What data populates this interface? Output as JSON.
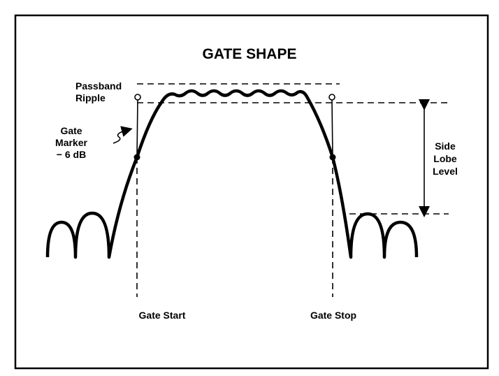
{
  "title": "GATE SHAPE",
  "passband_ripple": [
    "Passband",
    "Ripple"
  ],
  "gate_marker": [
    "Gate",
    "Marker",
    "− 6 dB"
  ],
  "side_lobe_level": [
    "Side",
    "Lobe",
    "Level"
  ],
  "gate_start": "Gate Start",
  "gate_stop": "Gate Stop"
}
